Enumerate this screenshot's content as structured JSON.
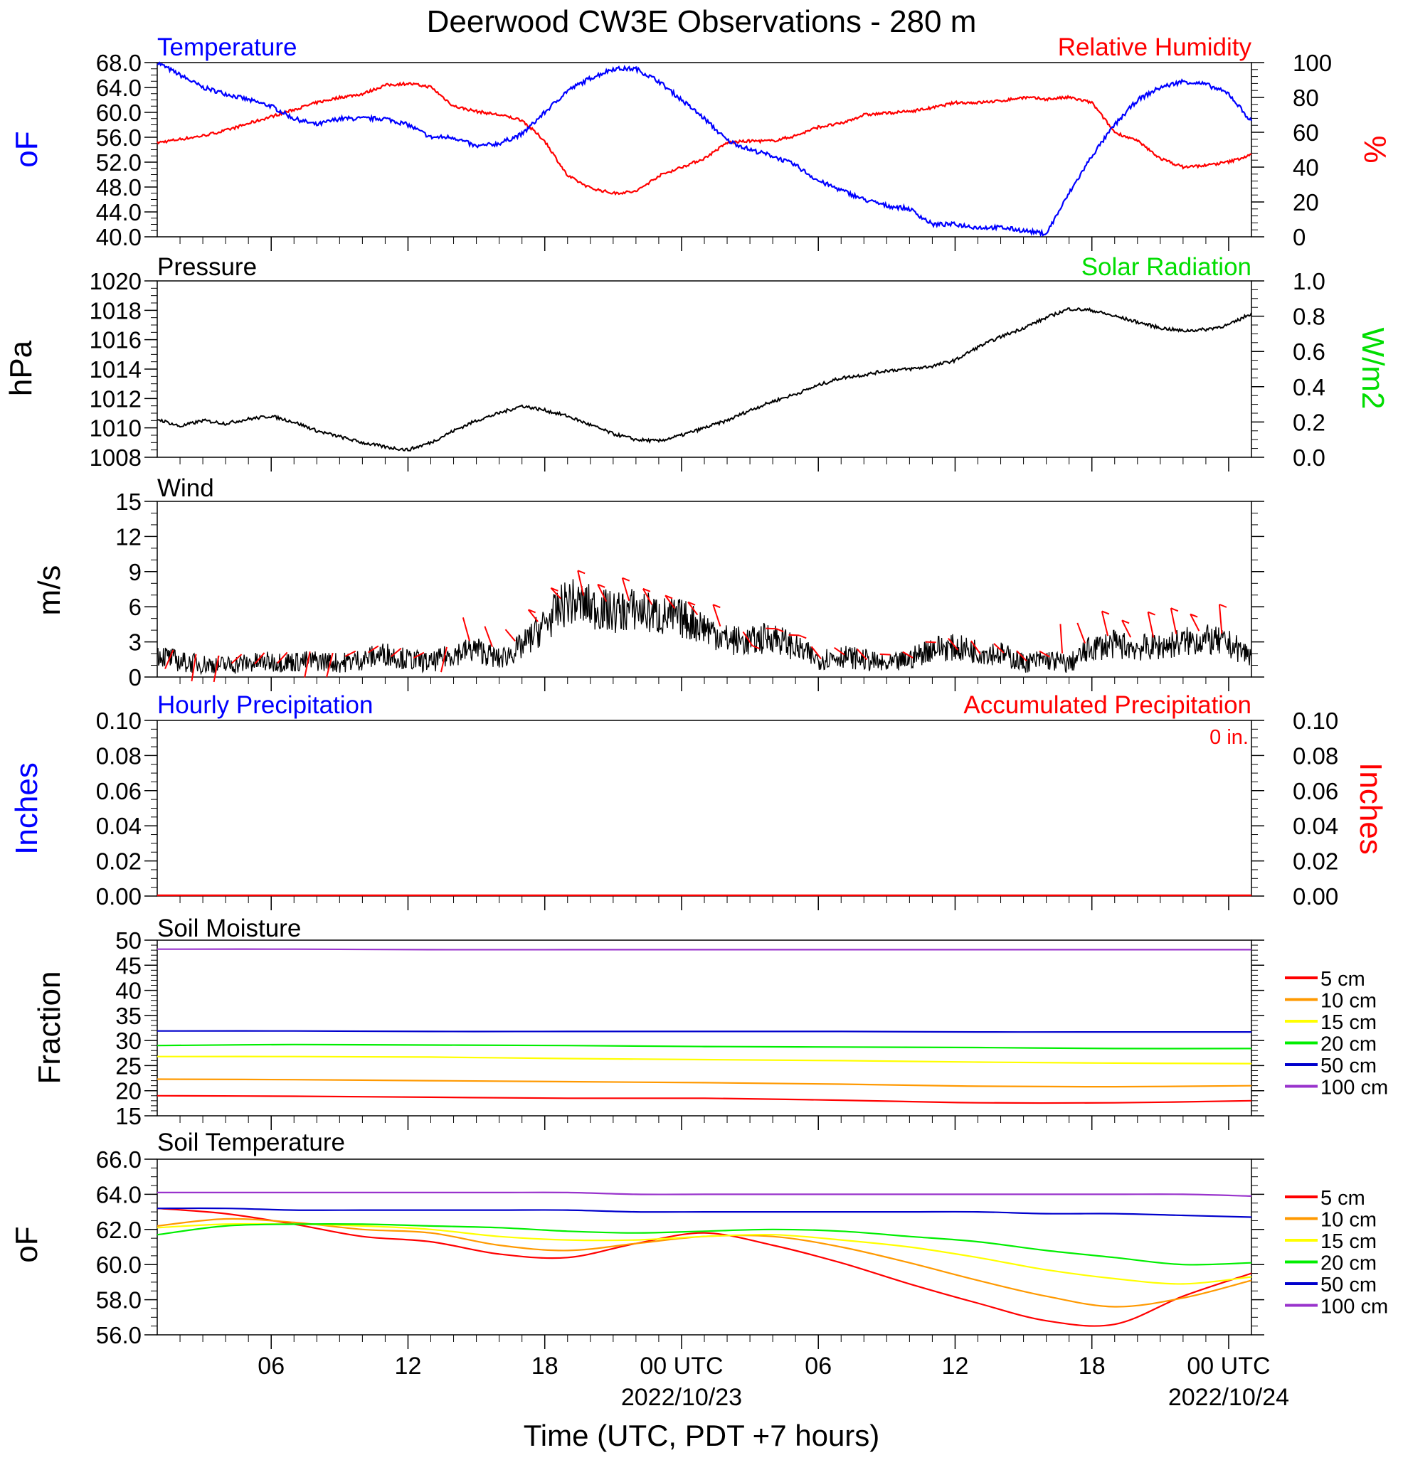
{
  "page_title": "Deerwood CW3E Observations - 280 m",
  "time_axis": {
    "title": "Time (UTC, PDT +7 hours)",
    "ticks": [
      {
        "h": 6,
        "label": "06",
        "date": ""
      },
      {
        "h": 12,
        "label": "12",
        "date": ""
      },
      {
        "h": 18,
        "label": "18",
        "date": ""
      },
      {
        "h": 24,
        "label": "00 UTC",
        "date": "2022/10/23"
      },
      {
        "h": 30,
        "label": "06",
        "date": ""
      },
      {
        "h": 36,
        "label": "12",
        "date": ""
      },
      {
        "h": 42,
        "label": "18",
        "date": ""
      },
      {
        "h": 48,
        "label": "00 UTC",
        "date": "2022/10/24"
      }
    ],
    "range_hours": [
      1,
      49
    ]
  },
  "panels": {
    "temp_rh": {
      "title_left": "Temperature",
      "title_right": "Relative Humidity",
      "ylabel_left": "oF",
      "ylabel_right": "%",
      "ticks_left": [
        "40.0",
        "44.0",
        "48.0",
        "52.0",
        "56.0",
        "60.0",
        "64.0",
        "68.0"
      ],
      "ticks_right": [
        "0",
        "20",
        "40",
        "60",
        "80",
        "100"
      ]
    },
    "pressure": {
      "title_left": "Pressure",
      "title_right": "Solar Radiation",
      "ylabel_left": "hPa",
      "ylabel_right": "W/m2",
      "ticks_left": [
        "1008",
        "1010",
        "1012",
        "1014",
        "1016",
        "1018",
        "1020"
      ],
      "ticks_right": [
        "0.0",
        "0.2",
        "0.4",
        "0.6",
        "0.8",
        "1.0"
      ]
    },
    "wind": {
      "title_left": "Wind",
      "ylabel_left": "m/s",
      "ticks_left": [
        "0",
        "3",
        "6",
        "9",
        "12",
        "15"
      ]
    },
    "precip": {
      "title_left": "Hourly Precipitation",
      "title_right": "Accumulated Precipitation",
      "accum_label": "0 in.",
      "ylabel_left": "Inches",
      "ylabel_right": "Inches",
      "ticks_left": [
        "0.00",
        "0.02",
        "0.04",
        "0.06",
        "0.08",
        "0.10"
      ],
      "ticks_right": [
        "0.00",
        "0.02",
        "0.04",
        "0.06",
        "0.08",
        "0.10"
      ]
    },
    "soil_moisture": {
      "title_left": "Soil Moisture",
      "ylabel_left": "Fraction",
      "ticks_left": [
        "15",
        "20",
        "25",
        "30",
        "35",
        "40",
        "45",
        "50"
      ],
      "legend": [
        "5 cm",
        "10 cm",
        "15 cm",
        "20 cm",
        "50 cm",
        "100 cm"
      ]
    },
    "soil_temp": {
      "title_left": "Soil Temperature",
      "ylabel_left": "oF",
      "ticks_left": [
        "56.0",
        "58.0",
        "60.0",
        "62.0",
        "64.0",
        "66.0"
      ],
      "legend": [
        "5 cm",
        "10 cm",
        "15 cm",
        "20 cm",
        "50 cm",
        "100 cm"
      ]
    }
  },
  "colors": {
    "temperature": "#0000ff",
    "humidity": "#ff0000",
    "pressure": "#000000",
    "solar": "#00dd00",
    "wind": "#000000",
    "barbs": "#ff0000",
    "depth": [
      "#ff0000",
      "#ff9900",
      "#ffff00",
      "#00ee00",
      "#0000cc",
      "#9933cc"
    ]
  },
  "chart_data": [
    {
      "type": "line",
      "title": "Temperature",
      "ylabel": "oF",
      "ylim": [
        40,
        68
      ],
      "x_hours": [
        1,
        2,
        3,
        4,
        5,
        6,
        7,
        8,
        9,
        10,
        11,
        12,
        13,
        14,
        15,
        16,
        17,
        18,
        19,
        20,
        21,
        22,
        23,
        24,
        25,
        26,
        27,
        28,
        29,
        30,
        31,
        32,
        33,
        34,
        35,
        36,
        37,
        38,
        39,
        40,
        41,
        42,
        43,
        44,
        45,
        46,
        47,
        48,
        49
      ],
      "values": [
        68,
        66,
        64,
        63,
        62,
        61,
        59,
        58,
        59,
        59,
        59,
        58,
        56,
        56,
        54.5,
        55,
        56.5,
        60,
        63.5,
        65.5,
        67,
        67,
        65,
        62,
        59,
        55.5,
        54,
        53,
        51.5,
        49,
        47.5,
        46,
        45,
        44.5,
        42,
        42,
        41.5,
        41.5,
        41,
        40.5,
        47,
        53,
        58,
        62,
        64,
        65,
        64.5,
        63,
        58.5
      ]
    },
    {
      "type": "line",
      "title": "Relative Humidity",
      "ylabel": "%",
      "ylim": [
        0,
        100
      ],
      "x_hours": [
        1,
        2,
        3,
        4,
        5,
        6,
        7,
        8,
        9,
        10,
        11,
        12,
        13,
        14,
        15,
        16,
        17,
        18,
        19,
        20,
        21,
        22,
        23,
        24,
        25,
        26,
        27,
        28,
        29,
        30,
        31,
        32,
        33,
        34,
        35,
        36,
        37,
        38,
        39,
        40,
        41,
        42,
        43,
        44,
        45,
        46,
        47,
        48,
        49
      ],
      "values": [
        54,
        56,
        58,
        61,
        65,
        69,
        73,
        77,
        80,
        82,
        87,
        88,
        86,
        75,
        72,
        70,
        67,
        55,
        35,
        28,
        25,
        26,
        35,
        40,
        45,
        54,
        55,
        55,
        58,
        63,
        65,
        70,
        71,
        72,
        74,
        77,
        77,
        78,
        80,
        79,
        80,
        77,
        60,
        55,
        45,
        40,
        41,
        43,
        47
      ]
    },
    {
      "type": "line",
      "title": "Pressure",
      "ylabel": "hPa",
      "ylim": [
        1008,
        1020
      ],
      "x_hours": [
        1,
        2,
        3,
        4,
        5,
        6,
        7,
        8,
        9,
        10,
        11,
        12,
        13,
        14,
        15,
        16,
        17,
        18,
        19,
        20,
        21,
        22,
        23,
        24,
        25,
        26,
        27,
        28,
        29,
        30,
        31,
        32,
        33,
        34,
        35,
        36,
        37,
        38,
        39,
        40,
        41,
        42,
        43,
        44,
        45,
        46,
        47,
        48,
        49
      ],
      "values": [
        1010.6,
        1010.1,
        1010.5,
        1010.3,
        1010.6,
        1010.8,
        1010.4,
        1009.8,
        1009.4,
        1009.0,
        1008.7,
        1008.5,
        1009.0,
        1009.8,
        1010.5,
        1011.0,
        1011.5,
        1011.2,
        1010.8,
        1010.2,
        1009.6,
        1009.2,
        1009.1,
        1009.5,
        1010.0,
        1010.5,
        1011.2,
        1011.8,
        1012.3,
        1012.9,
        1013.4,
        1013.6,
        1013.9,
        1014.0,
        1014.2,
        1014.6,
        1015.5,
        1016.2,
        1016.8,
        1017.5,
        1018.1,
        1018.0,
        1017.6,
        1017.2,
        1016.8,
        1016.6,
        1016.7,
        1017.0,
        1017.8
      ]
    },
    {
      "type": "line",
      "title": "Wind",
      "ylabel": "m/s",
      "ylim": [
        0,
        15
      ],
      "x_hours": [
        1,
        2,
        3,
        4,
        5,
        6,
        7,
        8,
        9,
        10,
        11,
        12,
        13,
        14,
        15,
        16,
        17,
        18,
        19,
        20,
        21,
        22,
        23,
        24,
        25,
        26,
        27,
        28,
        29,
        30,
        31,
        32,
        33,
        34,
        35,
        36,
        37,
        38,
        39,
        40,
        41,
        42,
        43,
        44,
        45,
        46,
        47,
        48,
        49
      ],
      "values": [
        2.0,
        1.3,
        1.1,
        1.0,
        1.2,
        1.3,
        1.3,
        1.4,
        1.2,
        1.5,
        2.0,
        1.5,
        1.2,
        2.0,
        2.4,
        1.5,
        2.6,
        4.5,
        6.5,
        6.0,
        5.5,
        5.8,
        5.2,
        5.0,
        4.3,
        3.2,
        3.0,
        3.5,
        2.5,
        1.5,
        1.8,
        1.5,
        1.0,
        1.5,
        2.5,
        2.5,
        2.2,
        2.0,
        1.2,
        1.5,
        1.1,
        2.5,
        2.8,
        2.5,
        2.6,
        3.0,
        3.2,
        2.8,
        1.8
      ]
    },
    {
      "type": "bar",
      "title": "Hourly Precipitation",
      "ylabel": "Inches",
      "ylim": [
        0,
        0.1
      ],
      "values": [
        0.0
      ]
    },
    {
      "type": "line",
      "title": "Accumulated Precipitation",
      "ylabel": "Inches",
      "ylim": [
        0,
        0.1
      ],
      "values": [
        0.0
      ]
    },
    {
      "type": "line",
      "title": "Soil Moisture",
      "ylabel": "Fraction",
      "ylim": [
        15,
        50
      ],
      "x_hours": [
        1,
        7,
        13,
        19,
        25,
        31,
        37,
        43,
        49
      ],
      "series": [
        {
          "name": "5 cm",
          "values": [
            19.0,
            18.9,
            18.7,
            18.5,
            18.5,
            18.1,
            17.6,
            17.6,
            18.0
          ]
        },
        {
          "name": "10 cm",
          "values": [
            22.3,
            22.2,
            22.0,
            21.8,
            21.6,
            21.3,
            20.9,
            20.8,
            21.0
          ]
        },
        {
          "name": "15 cm",
          "values": [
            26.8,
            26.8,
            26.7,
            26.4,
            26.2,
            26.0,
            25.7,
            25.5,
            25.4
          ]
        },
        {
          "name": "20 cm",
          "values": [
            29.0,
            29.2,
            29.1,
            29.0,
            28.8,
            28.7,
            28.6,
            28.4,
            28.4
          ]
        },
        {
          "name": "50 cm",
          "values": [
            31.9,
            31.9,
            31.8,
            31.8,
            31.8,
            31.8,
            31.7,
            31.7,
            31.7
          ]
        },
        {
          "name": "100 cm",
          "values": [
            48.2,
            48.2,
            48.1,
            48.1,
            48.1,
            48.1,
            48.1,
            48.1,
            48.1
          ]
        }
      ]
    },
    {
      "type": "line",
      "title": "Soil Temperature",
      "ylabel": "oF",
      "ylim": [
        56,
        66
      ],
      "x_hours": [
        1,
        4,
        7,
        10,
        13,
        16,
        19,
        22,
        25,
        28,
        31,
        34,
        37,
        40,
        43,
        46,
        49
      ],
      "series": [
        {
          "name": "5 cm",
          "values": [
            63.2,
            62.9,
            62.3,
            61.6,
            61.3,
            60.6,
            60.4,
            61.2,
            61.8,
            61.1,
            60.1,
            58.9,
            57.8,
            56.8,
            56.6,
            58.2,
            59.5
          ]
        },
        {
          "name": "10 cm",
          "values": [
            62.2,
            62.6,
            62.4,
            62.0,
            61.8,
            61.1,
            60.8,
            61.2,
            61.6,
            61.6,
            61.0,
            60.1,
            59.1,
            58.2,
            57.6,
            58.1,
            59.1
          ]
        },
        {
          "name": "15 cm",
          "values": [
            62.1,
            62.3,
            62.3,
            62.2,
            62.0,
            61.6,
            61.4,
            61.4,
            61.6,
            61.7,
            61.4,
            61.0,
            60.4,
            59.7,
            59.2,
            58.9,
            59.3
          ]
        },
        {
          "name": "20 cm",
          "values": [
            61.7,
            62.2,
            62.3,
            62.3,
            62.2,
            62.1,
            61.9,
            61.8,
            61.9,
            62.0,
            61.9,
            61.6,
            61.3,
            60.8,
            60.4,
            60.0,
            60.1
          ]
        },
        {
          "name": "50 cm",
          "values": [
            63.2,
            63.2,
            63.1,
            63.1,
            63.1,
            63.1,
            63.1,
            63.0,
            63.0,
            63.0,
            63.0,
            63.0,
            63.0,
            62.9,
            62.9,
            62.8,
            62.7
          ]
        },
        {
          "name": "100 cm",
          "values": [
            64.1,
            64.1,
            64.1,
            64.1,
            64.1,
            64.1,
            64.1,
            64.0,
            64.0,
            64.0,
            64.0,
            64.0,
            64.0,
            64.0,
            64.0,
            64.0,
            63.9
          ]
        }
      ]
    }
  ]
}
